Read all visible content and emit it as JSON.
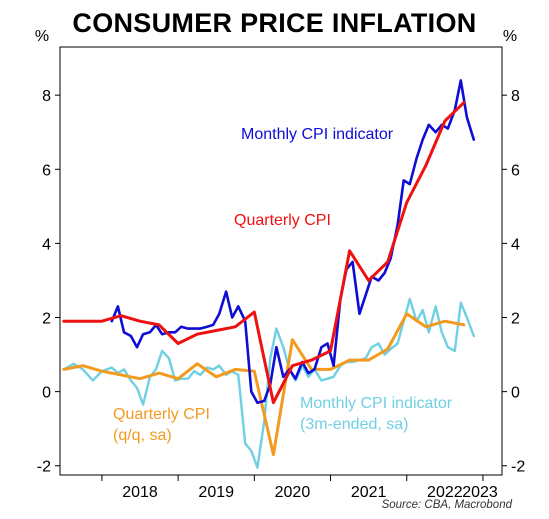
{
  "title": "CONSUMER PRICE INFLATION",
  "source": "Source: CBA, Macrobond",
  "chart_data": {
    "type": "line",
    "title": "CONSUMER PRICE INFLATION",
    "unit_left": "%",
    "unit_right": "%",
    "xlim": [
      2017.45,
      2023.25
    ],
    "ylim": [
      -2.25,
      9.3
    ],
    "yticks": [
      -2,
      0,
      2,
      4,
      6,
      8
    ],
    "xticks": [
      "2018",
      "2019",
      "2020",
      "2021",
      "2022",
      "2023"
    ],
    "grid": false,
    "legend": "inline-annotations",
    "series": [
      {
        "name": "Quarterly CPI",
        "color": "#ee1111",
        "points": [
          [
            2017.5,
            1.9
          ],
          [
            2017.75,
            1.9
          ],
          [
            2018.0,
            1.9
          ],
          [
            2018.25,
            2.05
          ],
          [
            2018.5,
            1.9
          ],
          [
            2018.75,
            1.8
          ],
          [
            2019.0,
            1.3
          ],
          [
            2019.25,
            1.55
          ],
          [
            2019.5,
            1.65
          ],
          [
            2019.75,
            1.75
          ],
          [
            2020.0,
            2.15
          ],
          [
            2020.25,
            -0.3
          ],
          [
            2020.5,
            0.7
          ],
          [
            2020.75,
            0.85
          ],
          [
            2021.0,
            1.1
          ],
          [
            2021.25,
            3.8
          ],
          [
            2021.5,
            3.0
          ],
          [
            2021.75,
            3.5
          ],
          [
            2022.0,
            5.1
          ],
          [
            2022.25,
            6.1
          ],
          [
            2022.5,
            7.3
          ],
          [
            2022.75,
            7.8
          ]
        ]
      },
      {
        "name": "Monthly CPI indicator",
        "color": "#0d0dd6",
        "points": [
          [
            2018.13,
            1.9
          ],
          [
            2018.21,
            2.3
          ],
          [
            2018.29,
            1.6
          ],
          [
            2018.38,
            1.5
          ],
          [
            2018.46,
            1.2
          ],
          [
            2018.54,
            1.55
          ],
          [
            2018.63,
            1.6
          ],
          [
            2018.71,
            1.8
          ],
          [
            2018.79,
            1.55
          ],
          [
            2018.88,
            1.6
          ],
          [
            2018.96,
            1.6
          ],
          [
            2019.04,
            1.75
          ],
          [
            2019.13,
            1.7
          ],
          [
            2019.21,
            1.7
          ],
          [
            2019.29,
            1.7
          ],
          [
            2019.38,
            1.75
          ],
          [
            2019.46,
            1.8
          ],
          [
            2019.54,
            2.1
          ],
          [
            2019.63,
            2.7
          ],
          [
            2019.71,
            2.0
          ],
          [
            2019.79,
            2.3
          ],
          [
            2019.88,
            1.9
          ],
          [
            2019.96,
            0.0
          ],
          [
            2020.04,
            -0.3
          ],
          [
            2020.13,
            -0.25
          ],
          [
            2020.21,
            0.2
          ],
          [
            2020.29,
            1.2
          ],
          [
            2020.38,
            0.4
          ],
          [
            2020.46,
            0.6
          ],
          [
            2020.54,
            0.35
          ],
          [
            2020.63,
            0.8
          ],
          [
            2020.71,
            0.5
          ],
          [
            2020.79,
            0.6
          ],
          [
            2020.88,
            1.2
          ],
          [
            2020.96,
            1.3
          ],
          [
            2021.04,
            0.7
          ],
          [
            2021.13,
            2.5
          ],
          [
            2021.21,
            3.3
          ],
          [
            2021.29,
            3.5
          ],
          [
            2021.38,
            2.1
          ],
          [
            2021.46,
            2.6
          ],
          [
            2021.54,
            3.1
          ],
          [
            2021.63,
            3.0
          ],
          [
            2021.71,
            3.2
          ],
          [
            2021.79,
            3.6
          ],
          [
            2021.88,
            4.5
          ],
          [
            2021.96,
            5.7
          ],
          [
            2022.04,
            5.6
          ],
          [
            2022.13,
            6.3
          ],
          [
            2022.21,
            6.8
          ],
          [
            2022.29,
            7.2
          ],
          [
            2022.38,
            7.0
          ],
          [
            2022.46,
            7.2
          ],
          [
            2022.54,
            7.1
          ],
          [
            2022.63,
            7.6
          ],
          [
            2022.71,
            8.4
          ],
          [
            2022.79,
            7.4
          ],
          [
            2022.88,
            6.8
          ]
        ]
      },
      {
        "name": "Quarterly CPI (q/q, sa)",
        "color": "#f29b1f",
        "points": [
          [
            2017.5,
            0.6
          ],
          [
            2017.75,
            0.7
          ],
          [
            2018.0,
            0.55
          ],
          [
            2018.25,
            0.45
          ],
          [
            2018.5,
            0.35
          ],
          [
            2018.75,
            0.5
          ],
          [
            2019.0,
            0.35
          ],
          [
            2019.25,
            0.75
          ],
          [
            2019.5,
            0.4
          ],
          [
            2019.75,
            0.6
          ],
          [
            2020.0,
            0.55
          ],
          [
            2020.25,
            -1.7
          ],
          [
            2020.5,
            1.4
          ],
          [
            2020.75,
            0.6
          ],
          [
            2021.0,
            0.6
          ],
          [
            2021.25,
            0.85
          ],
          [
            2021.5,
            0.85
          ],
          [
            2021.75,
            1.15
          ],
          [
            2022.0,
            2.1
          ],
          [
            2022.25,
            1.75
          ],
          [
            2022.5,
            1.9
          ],
          [
            2022.75,
            1.8
          ]
        ]
      },
      {
        "name": "Monthly CPI indicator (3m-ended, sa)",
        "color": "#6fd0e3",
        "points": [
          [
            2017.5,
            0.6
          ],
          [
            2017.63,
            0.75
          ],
          [
            2017.75,
            0.6
          ],
          [
            2017.88,
            0.3
          ],
          [
            2018.0,
            0.55
          ],
          [
            2018.13,
            0.65
          ],
          [
            2018.21,
            0.5
          ],
          [
            2018.29,
            0.6
          ],
          [
            2018.38,
            0.3
          ],
          [
            2018.46,
            0.1
          ],
          [
            2018.54,
            -0.35
          ],
          [
            2018.63,
            0.4
          ],
          [
            2018.71,
            0.6
          ],
          [
            2018.79,
            1.1
          ],
          [
            2018.88,
            0.9
          ],
          [
            2018.96,
            0.3
          ],
          [
            2019.04,
            0.35
          ],
          [
            2019.13,
            0.35
          ],
          [
            2019.21,
            0.55
          ],
          [
            2019.29,
            0.45
          ],
          [
            2019.38,
            0.65
          ],
          [
            2019.46,
            0.6
          ],
          [
            2019.54,
            0.7
          ],
          [
            2019.63,
            0.45
          ],
          [
            2019.71,
            0.55
          ],
          [
            2019.79,
            0.45
          ],
          [
            2019.88,
            -1.4
          ],
          [
            2019.96,
            -1.6
          ],
          [
            2020.04,
            -2.05
          ],
          [
            2020.13,
            -0.8
          ],
          [
            2020.21,
            0.9
          ],
          [
            2020.29,
            1.7
          ],
          [
            2020.38,
            1.2
          ],
          [
            2020.46,
            0.6
          ],
          [
            2020.54,
            0.3
          ],
          [
            2020.63,
            0.7
          ],
          [
            2020.71,
            0.4
          ],
          [
            2020.79,
            0.6
          ],
          [
            2020.88,
            0.3
          ],
          [
            2020.96,
            0.35
          ],
          [
            2021.04,
            0.4
          ],
          [
            2021.13,
            0.7
          ],
          [
            2021.21,
            0.8
          ],
          [
            2021.29,
            0.8
          ],
          [
            2021.38,
            0.85
          ],
          [
            2021.46,
            0.9
          ],
          [
            2021.54,
            1.2
          ],
          [
            2021.63,
            1.3
          ],
          [
            2021.71,
            1.0
          ],
          [
            2021.79,
            1.15
          ],
          [
            2021.88,
            1.3
          ],
          [
            2021.96,
            1.9
          ],
          [
            2022.04,
            2.5
          ],
          [
            2022.13,
            1.9
          ],
          [
            2022.21,
            2.2
          ],
          [
            2022.29,
            1.6
          ],
          [
            2022.38,
            2.3
          ],
          [
            2022.46,
            1.6
          ],
          [
            2022.54,
            1.2
          ],
          [
            2022.63,
            1.1
          ],
          [
            2022.71,
            2.4
          ],
          [
            2022.79,
            2.0
          ],
          [
            2022.88,
            1.5
          ]
        ]
      }
    ],
    "annotations": [
      {
        "text": "Monthly CPI indicator",
        "color": "#0d0dd6"
      },
      {
        "text": "Quarterly CPI",
        "color": "#ee1111"
      },
      {
        "text": "Quarterly CPI",
        "color": "#f29b1f"
      },
      {
        "text": "(q/q, sa)",
        "color": "#f29b1f"
      },
      {
        "text": "Monthly CPI indicator",
        "color": "#6fd0e3"
      },
      {
        "text": "(3m-ended, sa)",
        "color": "#6fd0e3"
      }
    ]
  }
}
